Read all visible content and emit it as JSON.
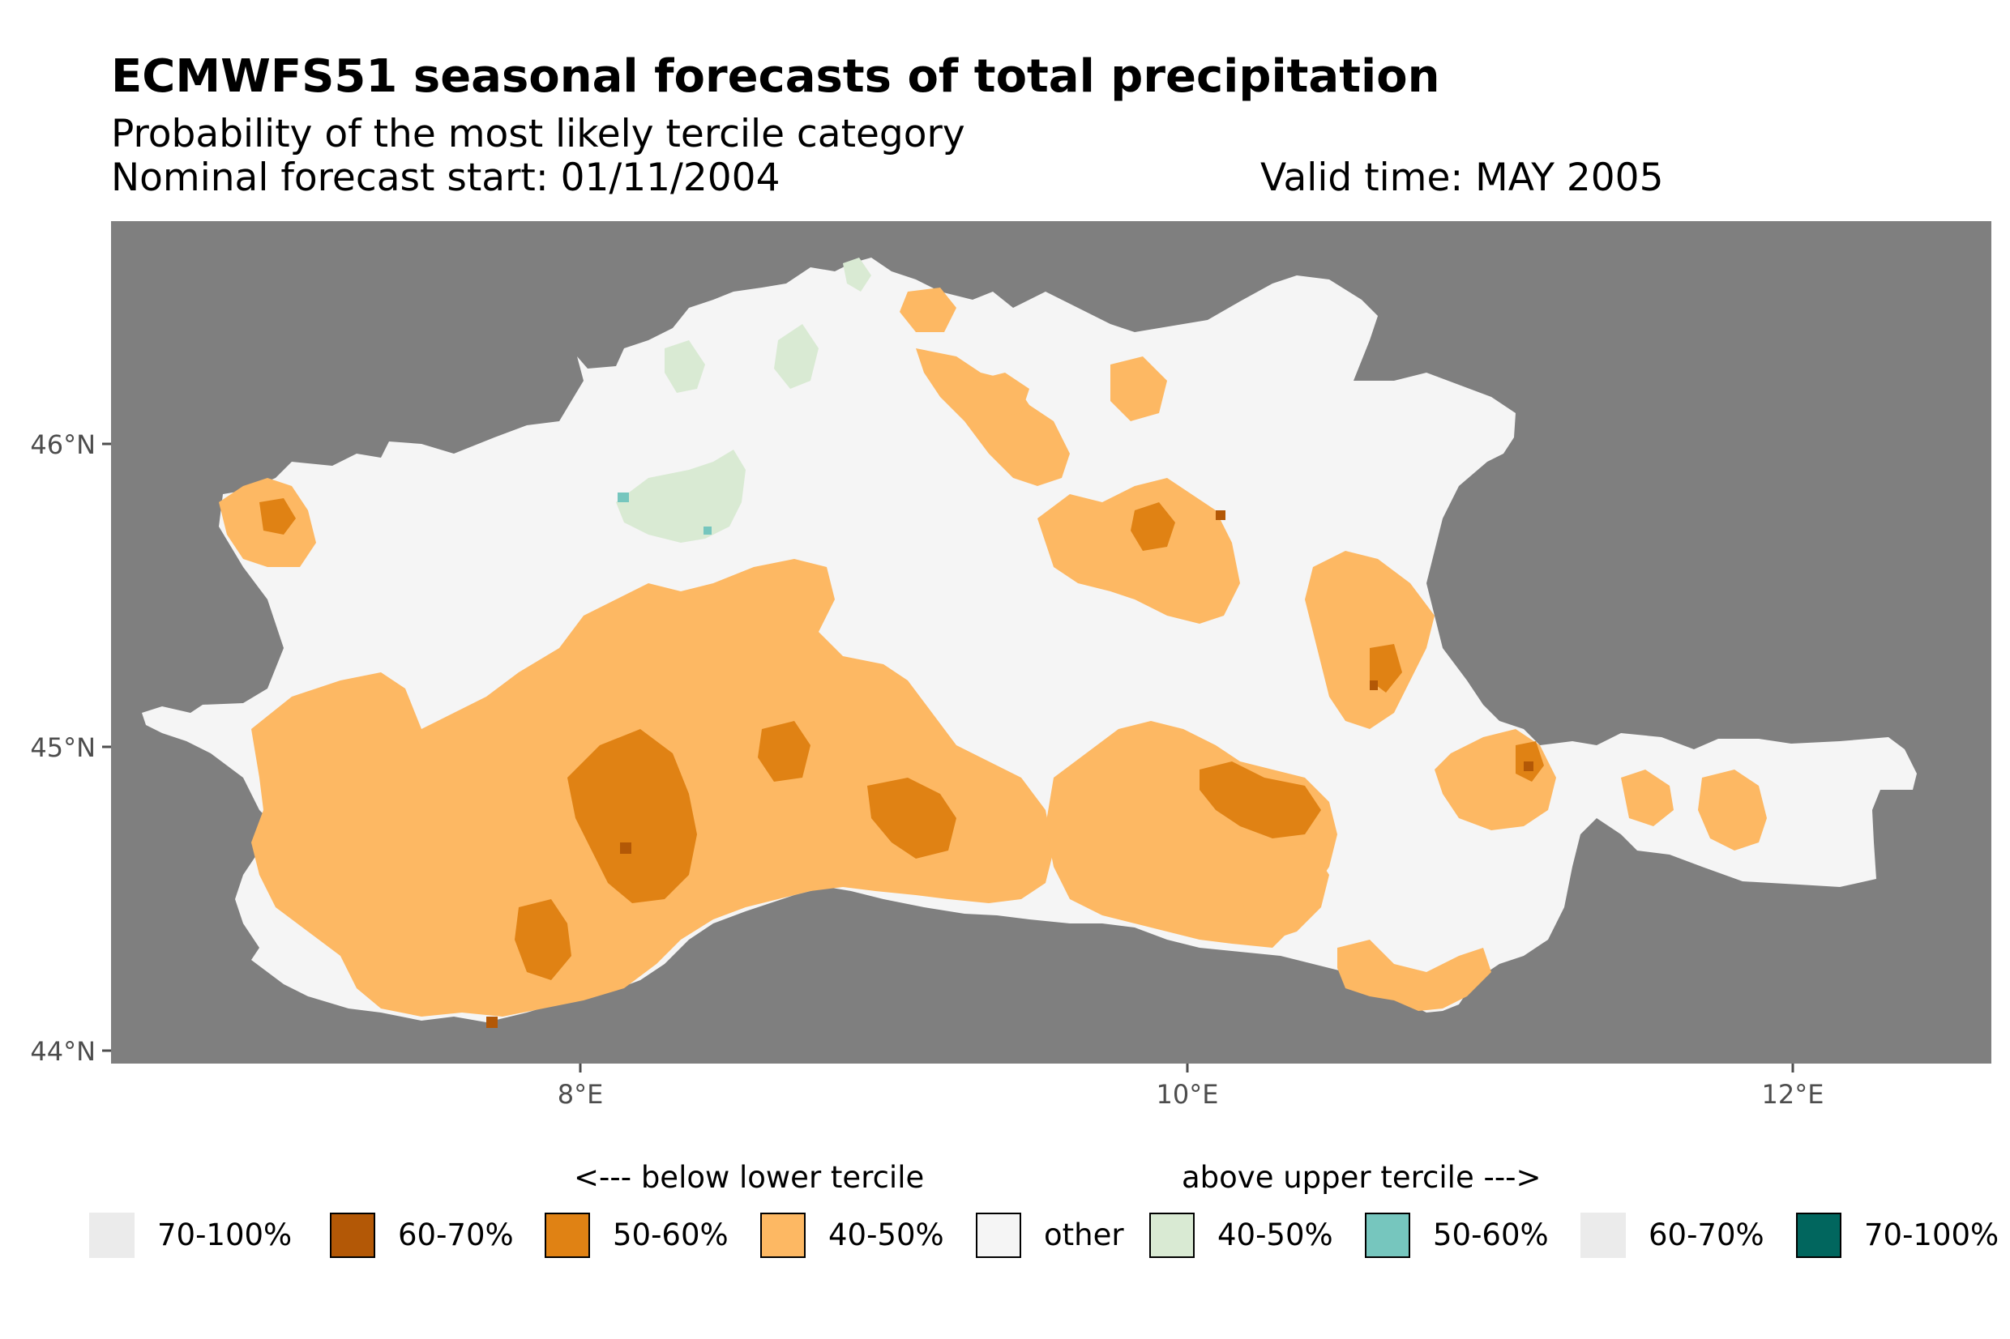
{
  "title": "ECMWFS51 seasonal forecasts of total precipitation",
  "subtitle": "Probability of the most likely tercile category",
  "forecast_start": "Nominal forecast start: 01/11/2004",
  "valid_time": "Valid time: MAY 2005",
  "axes": {
    "y_ticks": [
      "46°N",
      "45°N",
      "44°N"
    ],
    "x_ticks": [
      "8°E",
      "10°E",
      "12°E"
    ]
  },
  "colors": {
    "background_ocean": "#7f7f7f",
    "other": "#f5f5f5",
    "below_40_50": "#fdb863",
    "below_50_60": "#e08214",
    "below_60_70": "#b35806",
    "below_70_100": "#ebebeb",
    "above_40_50": "#d9ead3",
    "above_50_60": "#76c6be",
    "above_60_70": "#ebebeb",
    "above_70_100": "#01665e"
  },
  "legend": {
    "below_heading": "<--- below lower tercile",
    "above_heading": "above upper tercile --->",
    "items": [
      {
        "label": "70-100%",
        "color": "#ebebeb",
        "border": false
      },
      {
        "label": "60-70%",
        "color": "#b35806",
        "border": true
      },
      {
        "label": "50-60%",
        "color": "#e08214",
        "border": true
      },
      {
        "label": "40-50%",
        "color": "#fdb863",
        "border": true
      },
      {
        "label": "other",
        "color": "#f5f5f5",
        "border": true
      },
      {
        "label": "40-50%",
        "color": "#d9ead3",
        "border": true
      },
      {
        "label": "50-60%",
        "color": "#76c6be",
        "border": true
      },
      {
        "label": "60-70%",
        "color": "#ebebeb",
        "border": false
      },
      {
        "label": "70-100%",
        "color": "#01665e",
        "border": true
      }
    ]
  }
}
